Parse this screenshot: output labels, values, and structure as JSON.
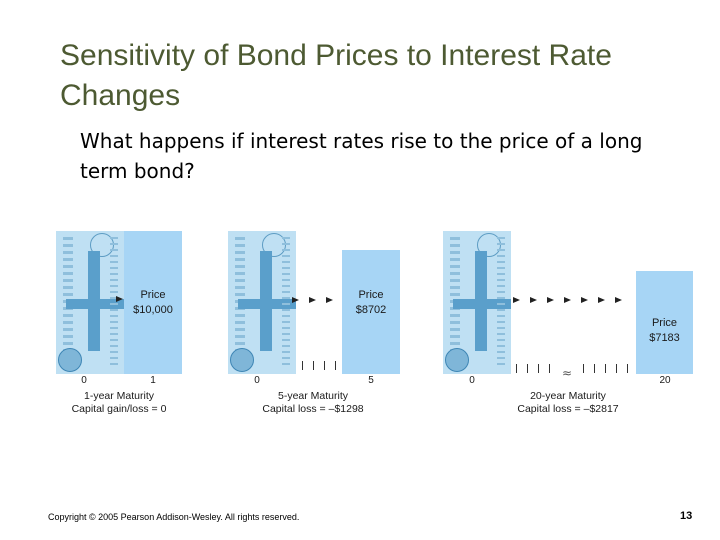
{
  "slide": {
    "title": "Sensitivity of Bond Prices to Interest Rate Changes",
    "question": "What happens if interest rates rise to the price of a long term bond?",
    "footer": "Copyright © 2005 Pearson Addison-Wesley. All rights reserved.",
    "page_number": "13"
  },
  "colors": {
    "title": "#4d5a32",
    "bar": "#a7d5f5",
    "bill": "#bfe0f3"
  },
  "panels": [
    {
      "price_word": "Price",
      "price_value": "$10,000",
      "axis_start": "0",
      "axis_end": "1",
      "caption_line1": "1-year Maturity",
      "caption_line2": "Capital gain/loss = 0",
      "bar_level": 1.0
    },
    {
      "price_word": "Price",
      "price_value": "$8702",
      "axis_start": "0",
      "axis_end": "5",
      "caption_line1": "5-year Maturity",
      "caption_line2": "Capital loss = –$1298",
      "bar_level": 0.8702
    },
    {
      "price_word": "Price",
      "price_value": "$7183",
      "axis_start": "0",
      "axis_end": "20",
      "caption_line1": "20-year Maturity",
      "caption_line2": "Capital loss = –$2817",
      "bar_level": 0.7183
    }
  ],
  "icons": {
    "bill": "dollar-bill-icon",
    "arrow": "right-arrow-icon",
    "axis_break": "axis-break-icon"
  }
}
